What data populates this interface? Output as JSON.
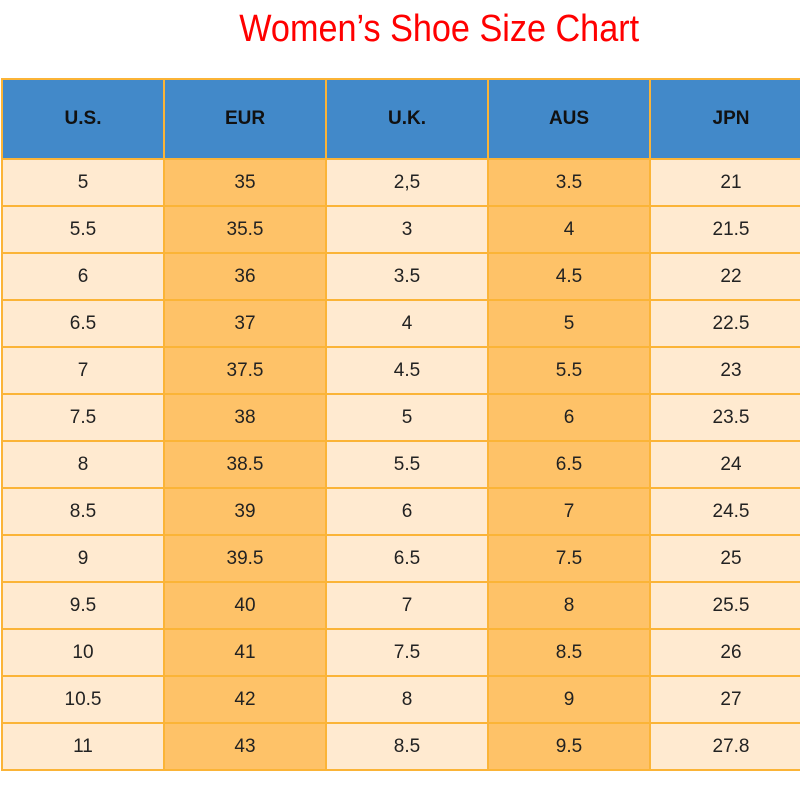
{
  "title": "Women’s Shoe Size Chart",
  "colors": {
    "title": "#ff0000",
    "header_bg": "#4289c9",
    "cell_light": "#ffead0",
    "cell_dark": "#fec268",
    "border": "#fbb437"
  },
  "table": {
    "headers": [
      "U.S.",
      "EUR",
      "U.K.",
      "AUS",
      "JPN"
    ],
    "rows": [
      [
        "5",
        "35",
        "2,5",
        "3.5",
        "21"
      ],
      [
        "5.5",
        "35.5",
        "3",
        "4",
        "21.5"
      ],
      [
        "6",
        "36",
        "3.5",
        "4.5",
        "22"
      ],
      [
        "6.5",
        "37",
        "4",
        "5",
        "22.5"
      ],
      [
        "7",
        "37.5",
        "4.5",
        "5.5",
        "23"
      ],
      [
        "7.5",
        "38",
        "5",
        "6",
        "23.5"
      ],
      [
        "8",
        "38.5",
        "5.5",
        "6.5",
        "24"
      ],
      [
        "8.5",
        "39",
        "6",
        "7",
        "24.5"
      ],
      [
        "9",
        "39.5",
        "6.5",
        "7.5",
        "25"
      ],
      [
        "9.5",
        "40",
        "7",
        "8",
        "25.5"
      ],
      [
        "10",
        "41",
        "7.5",
        "8.5",
        "26"
      ],
      [
        "10.5",
        "42",
        "8",
        "9",
        "27"
      ],
      [
        "11",
        "43",
        "8.5",
        "9.5",
        "27.8"
      ]
    ]
  }
}
